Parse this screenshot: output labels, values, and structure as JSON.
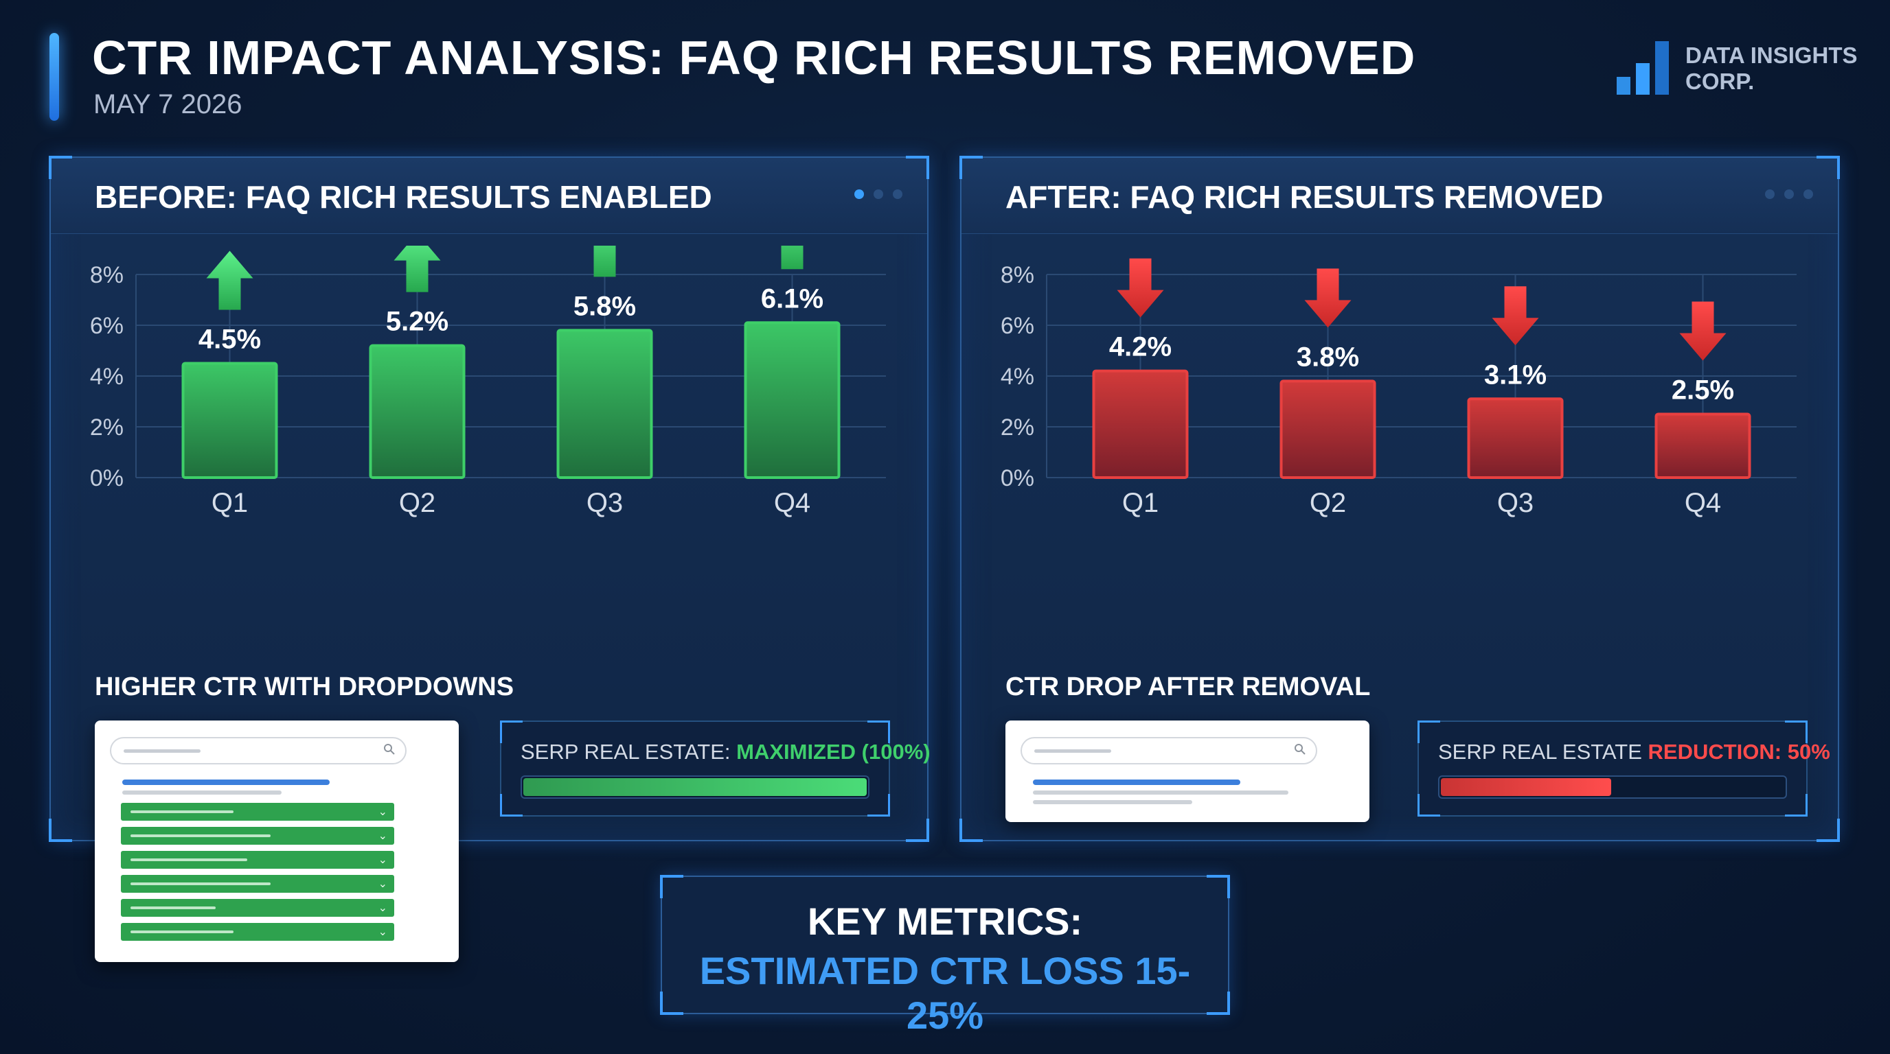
{
  "header": {
    "title": "CTR IMPACT ANALYSIS: FAQ RICH RESULTS REMOVED",
    "date": "MAY 7 2026",
    "logo_text_line1": "DATA INSIGHTS",
    "logo_text_line2": "CORP."
  },
  "colors": {
    "positive": "#3ecf68",
    "negative": "#e84040",
    "accent": "#3f9cf5",
    "background": "#0b1c36"
  },
  "before_panel": {
    "title": "BEFORE: FAQ RICH RESULTS ENABLED",
    "sub_label": "HIGHER CTR WITH DROPDOWNS",
    "serp_label": "SERP REAL ESTATE: ",
    "serp_highlight": "MAXIMIZED (100%)",
    "serp_fill_fraction": 1.0
  },
  "after_panel": {
    "title": "AFTER: FAQ RICH RESULTS REMOVED",
    "sub_label": "CTR DROP AFTER REMOVAL",
    "serp_label": "SERP REAL ESTATE ",
    "serp_highlight": "REDUCTION: 50%",
    "serp_fill_fraction": 0.5
  },
  "key_metrics": {
    "title": "KEY METRICS:",
    "value": "ESTIMATED CTR LOSS 15-25%"
  },
  "chart_data": [
    {
      "type": "bar",
      "title": "BEFORE: FAQ RICH RESULTS ENABLED",
      "categories": [
        "Q1",
        "Q2",
        "Q3",
        "Q4"
      ],
      "values": [
        4.5,
        5.2,
        5.8,
        6.1
      ],
      "value_labels": [
        "4.5%",
        "5.2%",
        "5.8%",
        "6.1%"
      ],
      "yticks": [
        "0%",
        "2%",
        "4%",
        "6%",
        "8%"
      ],
      "ylim": [
        0,
        8
      ],
      "trend": "up",
      "grid": true
    },
    {
      "type": "bar",
      "title": "AFTER: FAQ RICH RESULTS REMOVED",
      "categories": [
        "Q1",
        "Q2",
        "Q3",
        "Q4"
      ],
      "values": [
        4.2,
        3.8,
        3.1,
        2.5
      ],
      "value_labels": [
        "4.2%",
        "3.8%",
        "3.1%",
        "2.5%"
      ],
      "yticks": [
        "0%",
        "2%",
        "4%",
        "6%",
        "8%"
      ],
      "ylim": [
        0,
        8
      ],
      "trend": "down",
      "grid": true
    }
  ]
}
